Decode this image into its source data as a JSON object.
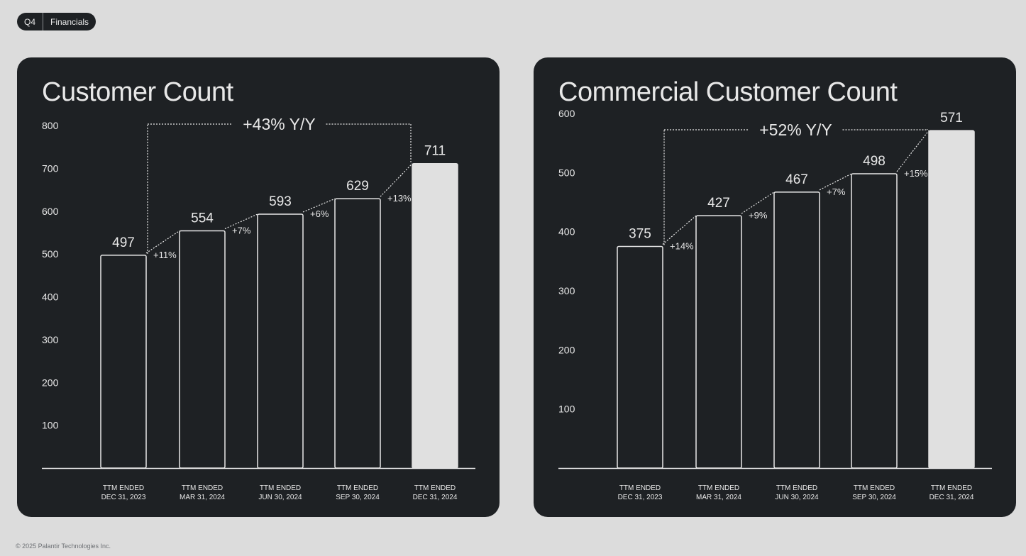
{
  "header": {
    "quarter": "Q4",
    "section": "Financials"
  },
  "footer": {
    "copyright": "© 2025 Palantir Technologies Inc."
  },
  "colors": {
    "background": "#dcdcdc",
    "card": "#1e2124",
    "text": "#e8e8e8",
    "highlight_bar": "#e0e0e0"
  },
  "chart_data": [
    {
      "type": "bar",
      "title": "Customer Count",
      "categories": [
        [
          "TTM ENDED",
          "DEC 31, 2023"
        ],
        [
          "TTM ENDED",
          "MAR 31, 2024"
        ],
        [
          "TTM ENDED",
          "JUN 30, 2024"
        ],
        [
          "TTM ENDED",
          "SEP 30, 2024"
        ],
        [
          "TTM ENDED",
          "DEC 31, 2024"
        ]
      ],
      "values": [
        497,
        554,
        593,
        629,
        711
      ],
      "growth_labels": [
        "+11%",
        "+7%",
        "+6%",
        "+13%"
      ],
      "yoy_label": "+43% Y/Y",
      "yticks": [
        100,
        200,
        300,
        400,
        500,
        600,
        700,
        800
      ],
      "ylim": [
        0,
        800
      ],
      "grid": false,
      "legend": "none",
      "highlight_index": 4
    },
    {
      "type": "bar",
      "title": "Commercial Customer Count",
      "categories": [
        [
          "TTM ENDED",
          "DEC 31, 2023"
        ],
        [
          "TTM ENDED",
          "MAR 31, 2024"
        ],
        [
          "TTM ENDED",
          "JUN 30, 2024"
        ],
        [
          "TTM ENDED",
          "SEP 30, 2024"
        ],
        [
          "TTM ENDED",
          "DEC 31, 2024"
        ]
      ],
      "values": [
        375,
        427,
        467,
        498,
        571
      ],
      "growth_labels": [
        "+14%",
        "+9%",
        "+7%",
        "+15%"
      ],
      "yoy_label": "+52% Y/Y",
      "yticks": [
        100,
        200,
        300,
        400,
        500,
        600
      ],
      "ylim": [
        0,
        600
      ],
      "grid": false,
      "legend": "none",
      "highlight_index": 4
    }
  ]
}
